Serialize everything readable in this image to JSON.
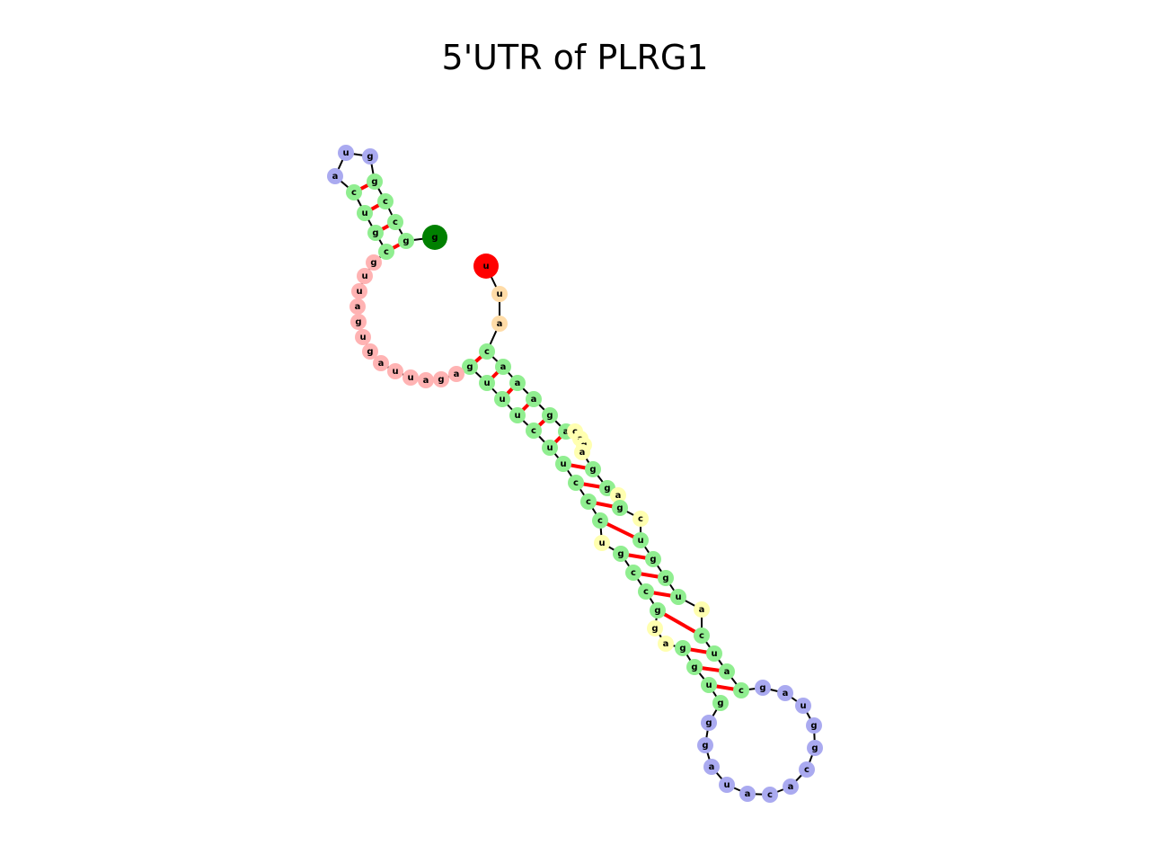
{
  "title": "5'UTR of PLRG1",
  "colors": {
    "stem": "#90ee90",
    "hairpin_loop": "#aaaaf0",
    "internal_loop": "#ffffb0",
    "multiloop": "#ffb3b3",
    "dangling_5p": "#ffdca8",
    "start": "#ff0000",
    "end": "#008000",
    "backbone": "#000000",
    "base_pair": "#ff0000"
  },
  "sequence": [
    {
      "base": "u",
      "region": "start"
    },
    {
      "base": "u",
      "region": "dangling_5p"
    },
    {
      "base": "a",
      "region": "dangling_5p"
    },
    {
      "base": "c",
      "region": "stem"
    },
    {
      "base": "a",
      "region": "stem"
    },
    {
      "base": "a",
      "region": "stem"
    },
    {
      "base": "a",
      "region": "stem"
    },
    {
      "base": "g",
      "region": "stem"
    },
    {
      "base": "a",
      "region": "stem"
    },
    {
      "base": "c",
      "region": "internal_loop"
    },
    {
      "base": "a",
      "region": "internal_loop"
    },
    {
      "base": "g",
      "region": "internal_loop"
    },
    {
      "base": "a",
      "region": "internal_loop"
    },
    {
      "base": "g",
      "region": "stem"
    },
    {
      "base": "g",
      "region": "stem"
    },
    {
      "base": "a",
      "region": "internal_loop"
    },
    {
      "base": "g",
      "region": "stem"
    },
    {
      "base": "c",
      "region": "internal_loop"
    },
    {
      "base": "u",
      "region": "stem"
    },
    {
      "base": "g",
      "region": "stem"
    },
    {
      "base": "g",
      "region": "stem"
    },
    {
      "base": "u",
      "region": "stem"
    },
    {
      "base": "a",
      "region": "internal_loop"
    },
    {
      "base": "c",
      "region": "stem"
    },
    {
      "base": "u",
      "region": "stem"
    },
    {
      "base": "a",
      "region": "stem"
    },
    {
      "base": "c",
      "region": "stem"
    },
    {
      "base": "g",
      "region": "hairpin_loop"
    },
    {
      "base": "a",
      "region": "hairpin_loop"
    },
    {
      "base": "u",
      "region": "hairpin_loop"
    },
    {
      "base": "g",
      "region": "hairpin_loop"
    },
    {
      "base": "g",
      "region": "hairpin_loop"
    },
    {
      "base": "c",
      "region": "hairpin_loop"
    },
    {
      "base": "a",
      "region": "hairpin_loop"
    },
    {
      "base": "c",
      "region": "hairpin_loop"
    },
    {
      "base": "a",
      "region": "hairpin_loop"
    },
    {
      "base": "u",
      "region": "hairpin_loop"
    },
    {
      "base": "a",
      "region": "hairpin_loop"
    },
    {
      "base": "g",
      "region": "hairpin_loop"
    },
    {
      "base": "g",
      "region": "hairpin_loop"
    },
    {
      "base": "g",
      "region": "stem"
    },
    {
      "base": "u",
      "region": "stem"
    },
    {
      "base": "g",
      "region": "stem"
    },
    {
      "base": "g",
      "region": "stem"
    },
    {
      "base": "a",
      "region": "internal_loop"
    },
    {
      "base": "g",
      "region": "internal_loop"
    },
    {
      "base": "g",
      "region": "stem"
    },
    {
      "base": "c",
      "region": "stem"
    },
    {
      "base": "c",
      "region": "stem"
    },
    {
      "base": "g",
      "region": "stem"
    },
    {
      "base": "u",
      "region": "internal_loop"
    },
    {
      "base": "c",
      "region": "stem"
    },
    {
      "base": "c",
      "region": "stem"
    },
    {
      "base": "c",
      "region": "stem"
    },
    {
      "base": "u",
      "region": "stem"
    },
    {
      "base": "u",
      "region": "stem"
    },
    {
      "base": "c",
      "region": "stem"
    },
    {
      "base": "u",
      "region": "stem"
    },
    {
      "base": "u",
      "region": "stem"
    },
    {
      "base": "u",
      "region": "stem"
    },
    {
      "base": "g",
      "region": "stem"
    },
    {
      "base": "a",
      "region": "multiloop"
    },
    {
      "base": "g",
      "region": "multiloop"
    },
    {
      "base": "a",
      "region": "multiloop"
    },
    {
      "base": "u",
      "region": "multiloop"
    },
    {
      "base": "u",
      "region": "multiloop"
    },
    {
      "base": "a",
      "region": "multiloop"
    },
    {
      "base": "g",
      "region": "multiloop"
    },
    {
      "base": "u",
      "region": "multiloop"
    },
    {
      "base": "g",
      "region": "multiloop"
    },
    {
      "base": "a",
      "region": "multiloop"
    },
    {
      "base": "u",
      "region": "multiloop"
    },
    {
      "base": "u",
      "region": "multiloop"
    },
    {
      "base": "g",
      "region": "multiloop"
    },
    {
      "base": "c",
      "region": "stem"
    },
    {
      "base": "g",
      "region": "stem"
    },
    {
      "base": "u",
      "region": "stem"
    },
    {
      "base": "c",
      "region": "stem"
    },
    {
      "base": "a",
      "region": "hairpin_loop"
    },
    {
      "base": "u",
      "region": "hairpin_loop"
    },
    {
      "base": "g",
      "region": "hairpin_loop"
    },
    {
      "base": "g",
      "region": "stem"
    },
    {
      "base": "c",
      "region": "stem"
    },
    {
      "base": "c",
      "region": "stem"
    },
    {
      "base": "g",
      "region": "stem"
    },
    {
      "base": "g",
      "region": "end"
    }
  ],
  "base_pairs": [
    [
      3,
      60
    ],
    [
      4,
      59
    ],
    [
      5,
      58
    ],
    [
      6,
      57
    ],
    [
      7,
      56
    ],
    [
      8,
      55
    ],
    [
      13,
      54
    ],
    [
      14,
      53
    ],
    [
      16,
      52
    ],
    [
      18,
      51
    ],
    [
      19,
      49
    ],
    [
      20,
      48
    ],
    [
      21,
      47
    ],
    [
      23,
      46
    ],
    [
      24,
      43
    ],
    [
      25,
      42
    ],
    [
      26,
      41
    ],
    [
      74,
      84
    ],
    [
      75,
      83
    ],
    [
      76,
      82
    ],
    [
      77,
      81
    ]
  ]
}
